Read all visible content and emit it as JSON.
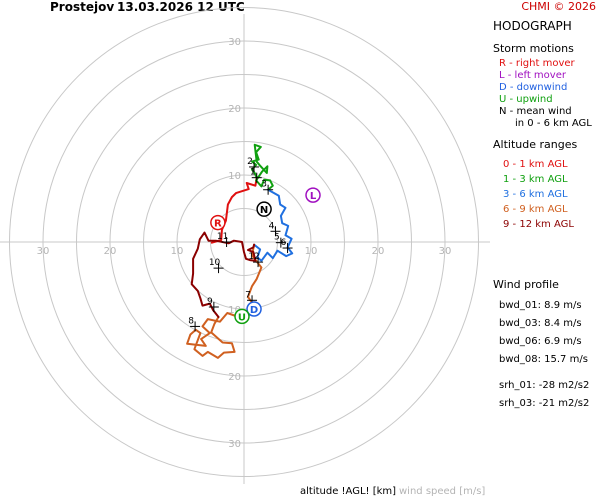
{
  "header": {
    "station": "Prostejov",
    "datetime": "13.03.2026 12 UTC",
    "credit": "CHMI © 2026"
  },
  "panel": {
    "title": "HODOGRAPH",
    "storm_title": "Storm motions",
    "motions": [
      {
        "text": "R - right mover",
        "color": "#e01010"
      },
      {
        "text": "L - left mover",
        "color": "#a010c0"
      },
      {
        "text": "D - downwind",
        "color": "#2060e0"
      },
      {
        "text": "U - upwind",
        "color": "#10a010"
      },
      {
        "text": "N - mean wind",
        "color": "#000000"
      },
      {
        "text": "in 0 - 6 km AGL",
        "color": "#000000"
      }
    ],
    "alt_title": "Altitude ranges",
    "ranges": [
      {
        "text": "0 - 1 km AGL",
        "color": "#e01010"
      },
      {
        "text": "1 - 3 km AGL",
        "color": "#10a010"
      },
      {
        "text": "3 - 6 km AGL",
        "color": "#2070e0"
      },
      {
        "text": "6 - 9 km AGL",
        "color": "#d06020"
      },
      {
        "text": "9 - 12 km AGL",
        "color": "#8b0000"
      }
    ],
    "wind_title": "Wind profile",
    "bwd": [
      {
        "name": "bwd_01:",
        "value": "8.9 m/s"
      },
      {
        "name": "bwd_03:",
        "value": "8.4 m/s"
      },
      {
        "name": "bwd_06:",
        "value": "6.9 m/s"
      },
      {
        "name": "bwd_08:",
        "value": "15.7 m/s"
      }
    ],
    "srh": [
      {
        "name": "srh_01:",
        "value": "-28 m2/s2"
      },
      {
        "name": "srh_03:",
        "value": "-21 m2/s2"
      }
    ]
  },
  "footer": {
    "altitude": "altitude !AGL! [km]",
    "speed": "wind speed [m/s]"
  },
  "chart_data": {
    "type": "hodograph",
    "units": "m/s",
    "rings": [
      5,
      10,
      15,
      20,
      25,
      30,
      35
    ],
    "ring_labels": [
      "10",
      "20",
      "30"
    ],
    "colors": {
      "grid": "#c8c8c8",
      "ring_label": "#b4b4b4",
      "seg_0_1": "#e01010",
      "seg_1_3": "#10a010",
      "seg_3_6": "#2070e0",
      "seg_6_9": "#d06020",
      "seg_9_12": "#8b0000"
    },
    "segments": [
      {
        "range": "0-1",
        "colorKey": "seg_0_1",
        "points": [
          [
            -4.8,
            -0.1
          ],
          [
            -3.4,
            0.3
          ],
          [
            -3.3,
            1.8
          ],
          [
            -2.7,
            3.2
          ],
          [
            -2.4,
            5.6
          ],
          [
            -1.8,
            6.7
          ],
          [
            -1.2,
            7.3
          ],
          [
            0.7,
            7.9
          ],
          [
            0.4,
            8.8
          ],
          [
            1.7,
            8.4
          ],
          [
            1.9,
            9.6
          ]
        ]
      },
      {
        "range": "1-3",
        "colorKey": "seg_1_3",
        "points": [
          [
            1.9,
            9.6
          ],
          [
            1.6,
            10.3
          ],
          [
            1.2,
            10.8
          ],
          [
            1.8,
            11.5
          ],
          [
            1.2,
            12.0
          ],
          [
            2.2,
            12.3
          ],
          [
            1.8,
            13.4
          ],
          [
            2.5,
            14.2
          ],
          [
            1.6,
            14.5
          ],
          [
            1.9,
            12.0
          ],
          [
            2.3,
            11.5
          ],
          [
            3.4,
            10.3
          ],
          [
            3.5,
            11.3
          ],
          [
            2.7,
            10.5
          ],
          [
            1.8,
            9.2
          ],
          [
            2.6,
            8.3
          ],
          [
            3.0,
            9.3
          ],
          [
            3.9,
            9.2
          ],
          [
            4.3,
            8.4
          ],
          [
            3.6,
            7.8
          ]
        ]
      },
      {
        "range": "3-6",
        "colorKey": "seg_3_6",
        "points": [
          [
            3.6,
            7.8
          ],
          [
            4.5,
            7.3
          ],
          [
            5.2,
            6.9
          ],
          [
            5.4,
            5.6
          ],
          [
            6.2,
            5.1
          ],
          [
            5.5,
            3.9
          ],
          [
            5.7,
            2.8
          ],
          [
            6.6,
            2.4
          ],
          [
            6.2,
            1.0
          ],
          [
            7.1,
            0.5
          ],
          [
            6.5,
            -0.8
          ],
          [
            7.2,
            -1.7
          ],
          [
            6.3,
            -2.1
          ],
          [
            5.0,
            -1.3
          ],
          [
            4.3,
            -2.4
          ],
          [
            3.5,
            -1.6
          ],
          [
            2.6,
            -2.8
          ],
          [
            2.0,
            -2.3
          ],
          [
            2.4,
            -1.1
          ],
          [
            1.5,
            -0.4
          ]
        ]
      },
      {
        "range": "6-9",
        "colorKey": "seg_6_9",
        "points": [
          [
            1.5,
            -0.4
          ],
          [
            1.2,
            -2.0
          ],
          [
            2.6,
            -3.8
          ],
          [
            1.9,
            -5.5
          ],
          [
            1.2,
            -6.6
          ],
          [
            0.6,
            -8.2
          ],
          [
            1.3,
            -9.2
          ],
          [
            1.5,
            -10.7
          ],
          [
            -0.8,
            -11.2
          ],
          [
            -2.5,
            -10.6
          ],
          [
            -3.6,
            -11.9
          ],
          [
            -5.4,
            -11.5
          ],
          [
            -6.2,
            -12.6
          ],
          [
            -5.1,
            -13.6
          ],
          [
            -6.4,
            -14.5
          ],
          [
            -5.7,
            -15.5
          ],
          [
            -8.5,
            -15.2
          ],
          [
            -8.0,
            -13.8
          ],
          [
            -7.2,
            -13.1
          ],
          [
            -6.5,
            -13.6
          ],
          [
            -7.4,
            -16.0
          ],
          [
            -6.2,
            -17.0
          ],
          [
            -5.4,
            -16.4
          ],
          [
            -3.9,
            -17.3
          ],
          [
            -3.0,
            -16.5
          ],
          [
            -1.4,
            -16.4
          ],
          [
            -1.8,
            -15.1
          ],
          [
            -3.2,
            -15.0
          ],
          [
            -4.9,
            -13.5
          ],
          [
            -4.4,
            -12.2
          ],
          [
            -3.8,
            -11.2
          ]
        ]
      },
      {
        "range": "9-12",
        "colorKey": "seg_9_12",
        "points": [
          [
            -3.8,
            -11.2
          ],
          [
            -4.6,
            -10.2
          ],
          [
            -5.1,
            -9.2
          ],
          [
            -6.2,
            -9.5
          ],
          [
            -6.5,
            -8.4
          ],
          [
            -6.9,
            -7.3
          ],
          [
            -7.8,
            -6.3
          ],
          [
            -7.6,
            -4.7
          ],
          [
            -7.6,
            -2.5
          ],
          [
            -6.9,
            -1.0
          ],
          [
            -6.6,
            0.4
          ],
          [
            -5.9,
            1.4
          ],
          [
            -5.3,
            0.2
          ],
          [
            -4.2,
            0.2
          ],
          [
            -2.3,
            -0.2
          ],
          [
            -1.5,
            0.2
          ],
          [
            -0.3,
            0.0
          ],
          [
            0.0,
            -1.5
          ],
          [
            0.3,
            -2.5
          ],
          [
            0.9,
            -2.7
          ],
          [
            1.7,
            -2.8
          ],
          [
            1.4,
            -1.5
          ],
          [
            0.6,
            -1.2
          ],
          [
            1.4,
            -0.8
          ],
          [
            1.5,
            -0.4
          ]
        ]
      }
    ],
    "height_marks": [
      {
        "label": "1",
        "u": 1.9,
        "v": 9.6
      },
      {
        "label": "2",
        "u": 1.5,
        "v": 11.2
      },
      {
        "label": "3",
        "u": 3.6,
        "v": 7.8
      },
      {
        "label": "4",
        "u": 4.7,
        "v": 1.6
      },
      {
        "label": "5",
        "u": 5.5,
        "v": -0.1
      },
      {
        "label": "6",
        "u": 6.5,
        "v": -0.9
      },
      {
        "label": "7",
        "u": 1.2,
        "v": -8.7
      },
      {
        "label": "8",
        "u": -7.3,
        "v": -12.6
      },
      {
        "label": "9",
        "u": -4.5,
        "v": -9.7
      },
      {
        "label": "10",
        "u": -3.8,
        "v": -3.9
      },
      {
        "label": "11",
        "u": -2.6,
        "v": 0.0
      },
      {
        "label": "12",
        "u": 2.1,
        "v": -3.0
      }
    ],
    "storm_motions": [
      {
        "label": "R",
        "u": -3.9,
        "v": 2.9,
        "color": "#e01010"
      },
      {
        "label": "L",
        "u": 10.3,
        "v": 7.0,
        "color": "#a010c0"
      },
      {
        "label": "N",
        "u": 3.0,
        "v": 4.9,
        "color": "#000000"
      },
      {
        "label": "D",
        "u": 1.5,
        "v": -10.0,
        "color": "#2060e0"
      },
      {
        "label": "U",
        "u": -0.3,
        "v": -11.1,
        "color": "#10a010"
      }
    ]
  }
}
